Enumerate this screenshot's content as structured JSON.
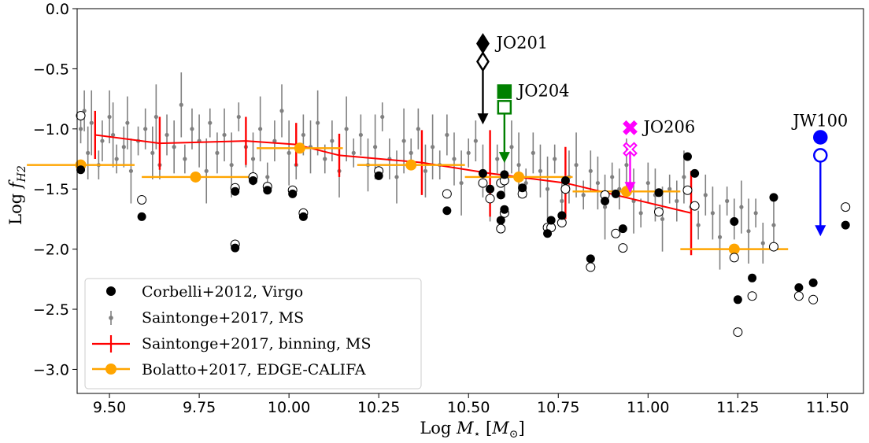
{
  "chart_data": {
    "type": "scatter",
    "title": "",
    "xlabel": "Log M_⋆[M_⊙]",
    "ylabel": "Log f_H2",
    "xlabel_parts": [
      "Log ",
      "M",
      "⋆",
      " [",
      "M",
      "⊙",
      "]"
    ],
    "ylabel_parts": [
      "Log ",
      "f",
      "H2"
    ],
    "xlim": [
      9.41,
      11.6
    ],
    "ylim": [
      -3.2,
      0.0
    ],
    "xticks": [
      9.5,
      9.75,
      10.0,
      10.25,
      10.5,
      10.75,
      11.0,
      11.25,
      11.5
    ],
    "xtick_labels": [
      "9.50",
      "9.75",
      "10.00",
      "10.25",
      "10.50",
      "10.75",
      "11.00",
      "11.25",
      "11.50"
    ],
    "yticks": [
      0.0,
      -0.5,
      -1.0,
      -1.5,
      -2.0,
      -2.5,
      -3.0
    ],
    "ytick_labels": [
      "0.0",
      "−0.5",
      "−1.0",
      "−1.5",
      "−2.0",
      "−2.5",
      "−3.0"
    ],
    "grid": false,
    "legend_position": "lower-left",
    "colors": {
      "corbelli": "#000000",
      "saintonge": "#808080",
      "binning": "#ff0000",
      "bolatto": "#ffa500",
      "jo201": "#000000",
      "jo204": "#008000",
      "jo206": "#ff00ff",
      "jw100": "#0000ff"
    },
    "series": [
      {
        "name": "Corbelli+2012, Virgo",
        "marker": "filled-circle",
        "x": [
          9.42,
          9.59,
          9.85,
          9.85,
          9.9,
          9.94,
          10.01,
          10.04,
          10.25,
          10.44,
          10.54,
          10.56,
          10.59,
          10.59,
          10.6,
          10.6,
          10.65,
          10.72,
          10.73,
          10.76,
          10.77,
          10.84,
          10.88,
          10.91,
          10.93,
          11.03,
          11.11,
          11.13,
          11.24,
          11.25,
          11.29,
          11.35,
          11.42,
          11.46,
          11.55
        ],
        "y": [
          -1.34,
          -1.73,
          -1.52,
          -1.99,
          -1.43,
          -1.51,
          -1.54,
          -1.73,
          -1.39,
          -1.68,
          -1.37,
          -1.5,
          -1.55,
          -1.76,
          -1.38,
          -1.67,
          -1.49,
          -1.87,
          -1.76,
          -1.72,
          -1.43,
          -2.08,
          -1.6,
          -1.54,
          -1.83,
          -1.53,
          -1.23,
          -1.37,
          -1.77,
          -2.42,
          -2.24,
          -1.57,
          -2.32,
          -2.28,
          -1.8
        ]
      },
      {
        "name": "",
        "marker": "open-circle",
        "x": [
          9.42,
          9.59,
          9.85,
          9.85,
          9.9,
          9.94,
          10.01,
          10.04,
          10.25,
          10.44,
          10.54,
          10.56,
          10.59,
          10.59,
          10.6,
          10.6,
          10.65,
          10.72,
          10.73,
          10.76,
          10.77,
          10.84,
          10.88,
          10.91,
          10.93,
          11.03,
          11.11,
          11.13,
          11.24,
          11.25,
          11.29,
          11.35,
          11.42,
          11.46,
          11.55
        ],
        "y": [
          -0.89,
          -1.59,
          -1.49,
          -1.96,
          -1.4,
          -1.48,
          -1.51,
          -1.7,
          -1.35,
          -1.54,
          -1.45,
          -1.58,
          -1.45,
          -1.83,
          -1.43,
          -1.7,
          -1.54,
          -1.82,
          -1.82,
          -1.78,
          -1.5,
          -2.15,
          -1.55,
          -1.87,
          -1.99,
          -1.69,
          -1.51,
          -1.64,
          -2.07,
          -2.69,
          -2.39,
          -1.98,
          -2.39,
          -2.42,
          -1.65
        ]
      },
      {
        "name": "Saintonge+2017, MS",
        "marker": "small-point-errorbar",
        "x": [
          9.42,
          9.43,
          9.44,
          9.45,
          9.47,
          9.48,
          9.5,
          9.51,
          9.52,
          9.54,
          9.55,
          9.56,
          9.58,
          9.6,
          9.62,
          9.63,
          9.64,
          9.66,
          9.68,
          9.7,
          9.71,
          9.73,
          9.75,
          9.77,
          9.78,
          9.8,
          9.82,
          9.84,
          9.86,
          9.88,
          9.9,
          9.92,
          9.94,
          9.96,
          9.98,
          10.0,
          10.02,
          10.04,
          10.06,
          10.08,
          10.1,
          10.12,
          10.14,
          10.16,
          10.18,
          10.2,
          10.22,
          10.24,
          10.26,
          10.28,
          10.3,
          10.32,
          10.34,
          10.36,
          10.38,
          10.4,
          10.42,
          10.44,
          10.46,
          10.48,
          10.5,
          10.52,
          10.54,
          10.56,
          10.58,
          10.6,
          10.62,
          10.64,
          10.66,
          10.68,
          10.7,
          10.72,
          10.74,
          10.76,
          10.78,
          10.8,
          10.82,
          10.84,
          10.86,
          10.88,
          10.9,
          10.92,
          10.94,
          10.96,
          10.98,
          11.0,
          11.02,
          11.04,
          11.06,
          11.08,
          11.1,
          11.12,
          11.14,
          11.16,
          11.18,
          11.2,
          11.22,
          11.24,
          11.26,
          11.28,
          11.3,
          11.32,
          11.35
        ],
        "y": [
          -1.0,
          -0.85,
          -1.2,
          -0.95,
          -1.3,
          -1.1,
          -0.9,
          -1.05,
          -1.25,
          -1.15,
          -0.95,
          -1.35,
          -1.1,
          -1.0,
          -1.2,
          -0.9,
          -1.3,
          -1.05,
          -1.15,
          -0.8,
          -1.25,
          -1.0,
          -1.1,
          -1.35,
          -0.95,
          -1.2,
          -1.05,
          -1.3,
          -0.9,
          -1.15,
          -1.25,
          -1.0,
          -1.4,
          -1.1,
          -0.85,
          -1.2,
          -1.3,
          -1.05,
          -1.15,
          -0.95,
          -1.25,
          -1.1,
          -1.35,
          -1.0,
          -1.2,
          -1.05,
          -1.3,
          -1.15,
          -0.9,
          -1.25,
          -1.4,
          -1.1,
          -1.2,
          -1.0,
          -1.35,
          -1.15,
          -1.3,
          -1.05,
          -1.25,
          -1.45,
          -1.2,
          -1.1,
          -1.35,
          -1.5,
          -1.25,
          -1.4,
          -1.15,
          -1.3,
          -1.45,
          -1.2,
          -1.35,
          -1.5,
          -1.25,
          -1.6,
          -1.4,
          -1.3,
          -1.55,
          -1.35,
          -1.45,
          -1.65,
          -1.4,
          -1.5,
          -1.3,
          -1.6,
          -1.7,
          -1.45,
          -1.55,
          -1.75,
          -1.5,
          -1.6,
          -1.4,
          -1.65,
          -1.8,
          -1.55,
          -1.7,
          -1.9,
          -1.6,
          -1.75,
          -1.65,
          -1.85,
          -1.7,
          -1.95,
          -1.8
        ]
      },
      {
        "name": "Saintonge+2017, binning, MS",
        "marker": "line-errorbar",
        "x": [
          9.46,
          9.64,
          9.88,
          10.02,
          10.14,
          10.37,
          10.56,
          10.77,
          11.12
        ],
        "y": [
          -1.05,
          -1.12,
          -1.1,
          -1.13,
          -1.22,
          -1.28,
          -1.37,
          -1.45,
          -1.7
        ],
        "yerr": [
          0.2,
          0.22,
          0.2,
          0.18,
          0.18,
          0.27,
          0.36,
          0.3,
          0.35
        ]
      },
      {
        "name": "Bolatto+2017, EDGE-CALIFA",
        "marker": "orange-point-xerr",
        "x": [
          9.42,
          9.74,
          10.03,
          10.34,
          10.64,
          10.94,
          11.24
        ],
        "y": [
          -1.3,
          -1.4,
          -1.16,
          -1.3,
          -1.4,
          -1.52,
          -2.0
        ],
        "xerr": [
          0.15,
          0.15,
          0.12,
          0.15,
          0.15,
          0.15,
          0.15
        ]
      }
    ],
    "annotations": [
      {
        "label": "JO201",
        "x": 10.54,
        "y_filled": -0.29,
        "y_open": -0.44,
        "y_arrow_end": -0.95,
        "filled_marker": "diamond",
        "open_marker": "open-diamond",
        "color_key": "jo201"
      },
      {
        "label": "JO204",
        "x": 10.6,
        "y_filled": -0.69,
        "y_open": -0.82,
        "y_arrow_end": -1.27,
        "filled_marker": "square",
        "open_marker": "open-square",
        "color_key": "jo204"
      },
      {
        "label": "JO206",
        "x": 10.95,
        "y_filled": -0.99,
        "y_open": -1.17,
        "y_arrow_end": -1.52,
        "filled_marker": "x",
        "open_marker": "open-x",
        "color_key": "jo206"
      },
      {
        "label": "JW100",
        "x": 11.48,
        "y_filled": -1.07,
        "y_open": -1.22,
        "y_arrow_end": -1.88,
        "filled_marker": "circle",
        "open_marker": "open-circle",
        "color_key": "jw100"
      }
    ]
  }
}
